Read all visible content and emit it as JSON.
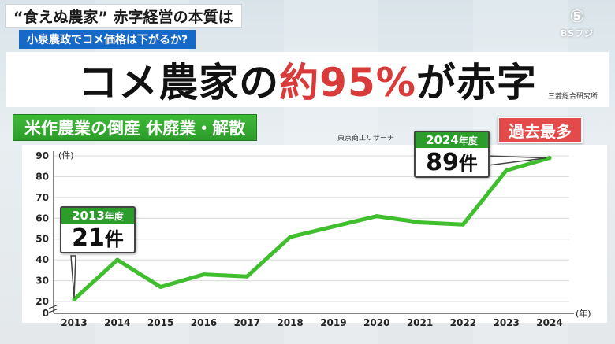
{
  "header": {
    "topic": "“食えぬ農家” 赤字経営の本質は",
    "subtopic": "小泉農政でコメ価格は下がるか?",
    "logo_glyph": "⑤",
    "logo_name": "BSフジ"
  },
  "headline": {
    "part1": "コメ農家の",
    "highlight": "約95%",
    "part2": "が赤字",
    "source": "三菱総合研究所"
  },
  "section": {
    "title": "米作農業の倒産 休廃業・解散",
    "source": "東京商工リサーチ",
    "badge": "過去最多"
  },
  "callouts": {
    "first": {
      "year_label": "2013",
      "year_suffix": "年度",
      "value": "21",
      "unit": "件"
    },
    "last": {
      "year_label": "2024",
      "year_suffix": "年度",
      "value": "89",
      "unit": "件"
    }
  },
  "colors": {
    "line": "#3fbf2e",
    "accent_red": "#e44a4a",
    "blue": "#1769c7"
  },
  "chart_data": {
    "type": "line",
    "x": [
      "2013",
      "2014",
      "2015",
      "2016",
      "2017",
      "2018",
      "2019",
      "2020",
      "2021",
      "2022",
      "2023",
      "2024"
    ],
    "series": [
      {
        "values": [
          21,
          40,
          27,
          33,
          32,
          51,
          56,
          61,
          58,
          57,
          83,
          89
        ]
      }
    ],
    "ylabel": "(件)",
    "xlabel": "(年)",
    "ylim": [
      0,
      90
    ],
    "yticks": [
      0,
      20,
      30,
      40,
      50,
      60,
      70,
      80,
      90
    ],
    "axis_break": true,
    "grid": true
  }
}
